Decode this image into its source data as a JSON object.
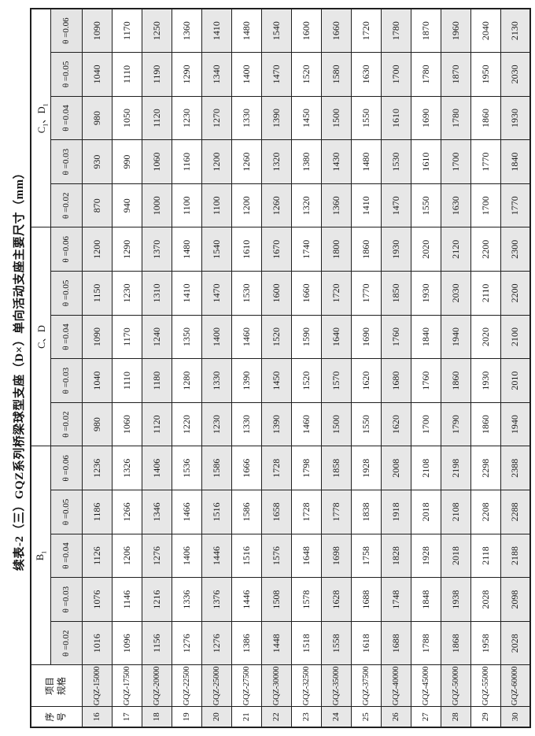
{
  "page": {
    "title": "续表-2（三）GQZ系列桥梁球型支座（D×）单向活动支座主要尺寸（mm）"
  },
  "colors": {
    "border": "#1f1f1f",
    "theta_header_bg": "#e4e4e4",
    "alt_row_bg": "#e7e7e7",
    "row_bg": "#ffffff",
    "page_bg": "#ffffff",
    "text": "#161616"
  },
  "table": {
    "corner_headers": [
      {
        "name": "serial",
        "lines": [
          "序",
          "号"
        ]
      },
      {
        "name": "spec",
        "lines": [
          "项目",
          "规格"
        ]
      }
    ],
    "groups": [
      {
        "parts": [
          {
            "t": "B"
          },
          {
            "t": "1",
            "sub": true
          }
        ],
        "thetas": [
          "θ =0.02",
          "θ =0.03",
          "θ =0.04",
          "θ =0.05",
          "θ =0.06"
        ]
      },
      {
        "parts": [
          {
            "t": "C、D"
          }
        ],
        "thetas": [
          "θ =0.02",
          "θ =0.03",
          "θ =0.04",
          "θ =0.05",
          "θ =0.06"
        ]
      },
      {
        "parts": [
          {
            "t": "C"
          },
          {
            "t": "1",
            "sub": true
          },
          {
            "t": "、D"
          },
          {
            "t": "1",
            "sub": true
          }
        ],
        "thetas": [
          "θ =0.02",
          "θ =0.03",
          "θ =0.04",
          "θ =0.05",
          "θ =0.06"
        ]
      }
    ],
    "rows": [
      {
        "no": "16",
        "spec": "GQZ-15000",
        "b1": [
          "1016",
          "1076",
          "1126",
          "1186",
          "1236"
        ],
        "cd": [
          "980",
          "1040",
          "1090",
          "1150",
          "1200"
        ],
        "c1d1": [
          "870",
          "930",
          "980",
          "1040",
          "1090"
        ]
      },
      {
        "no": "17",
        "spec": "GQZ-17500",
        "b1": [
          "1096",
          "1146",
          "1206",
          "1266",
          "1326"
        ],
        "cd": [
          "1060",
          "1110",
          "1170",
          "1230",
          "1290"
        ],
        "c1d1": [
          "940",
          "990",
          "1050",
          "1110",
          "1170"
        ]
      },
      {
        "no": "18",
        "spec": "GQZ-20000",
        "b1": [
          "1156",
          "1216",
          "1276",
          "1346",
          "1406"
        ],
        "cd": [
          "1120",
          "1180",
          "1240",
          "1310",
          "1370"
        ],
        "c1d1": [
          "1000",
          "1060",
          "1120",
          "1190",
          "1250"
        ]
      },
      {
        "no": "19",
        "spec": "GQZ-22500",
        "b1": [
          "1276",
          "1336",
          "1406",
          "1466",
          "1536"
        ],
        "cd": [
          "1220",
          "1280",
          "1350",
          "1410",
          "1480"
        ],
        "c1d1": [
          "1100",
          "1160",
          "1230",
          "1290",
          "1360"
        ]
      },
      {
        "no": "20",
        "spec": "GQZ-25000",
        "b1": [
          "1276",
          "1376",
          "1446",
          "1516",
          "1586"
        ],
        "cd": [
          "1230",
          "1330",
          "1400",
          "1470",
          "1540"
        ],
        "c1d1": [
          "1100",
          "1200",
          "1270",
          "1340",
          "1410"
        ]
      },
      {
        "no": "21",
        "spec": "GQZ-27500",
        "b1": [
          "1386",
          "1446",
          "1516",
          "1586",
          "1666"
        ],
        "cd": [
          "1330",
          "1390",
          "1460",
          "1530",
          "1610"
        ],
        "c1d1": [
          "1200",
          "1260",
          "1330",
          "1400",
          "1480"
        ]
      },
      {
        "no": "22",
        "spec": "GQZ-30000",
        "b1": [
          "1448",
          "1508",
          "1576",
          "1658",
          "1728"
        ],
        "cd": [
          "1390",
          "1450",
          "1520",
          "1600",
          "1670"
        ],
        "c1d1": [
          "1260",
          "1320",
          "1390",
          "1470",
          "1540"
        ]
      },
      {
        "no": "23",
        "spec": "GQZ-32500",
        "b1": [
          "1518",
          "1578",
          "1648",
          "1728",
          "1798"
        ],
        "cd": [
          "1460",
          "1520",
          "1590",
          "1660",
          "1740"
        ],
        "c1d1": [
          "1320",
          "1380",
          "1450",
          "1520",
          "1600"
        ]
      },
      {
        "no": "24",
        "spec": "GQZ-35000",
        "b1": [
          "1558",
          "1628",
          "1698",
          "1778",
          "1858"
        ],
        "cd": [
          "1500",
          "1570",
          "1640",
          "1720",
          "1800"
        ],
        "c1d1": [
          "1360",
          "1430",
          "1500",
          "1580",
          "1660"
        ]
      },
      {
        "no": "25",
        "spec": "GQZ-37500",
        "b1": [
          "1618",
          "1688",
          "1758",
          "1838",
          "1928"
        ],
        "cd": [
          "1550",
          "1620",
          "1690",
          "1770",
          "1860"
        ],
        "c1d1": [
          "1410",
          "1480",
          "1550",
          "1630",
          "1720"
        ]
      },
      {
        "no": "26",
        "spec": "GQZ-40000",
        "b1": [
          "1688",
          "1748",
          "1828",
          "1918",
          "2008"
        ],
        "cd": [
          "1620",
          "1680",
          "1760",
          "1850",
          "1930"
        ],
        "c1d1": [
          "1470",
          "1530",
          "1610",
          "1700",
          "1780"
        ]
      },
      {
        "no": "27",
        "spec": "GQZ-45000",
        "b1": [
          "1788",
          "1848",
          "1928",
          "2018",
          "2108"
        ],
        "cd": [
          "1700",
          "1760",
          "1840",
          "1930",
          "2020"
        ],
        "c1d1": [
          "1550",
          "1610",
          "1690",
          "1780",
          "1870"
        ]
      },
      {
        "no": "28",
        "spec": "GQZ-50000",
        "b1": [
          "1868",
          "1938",
          "2018",
          "2108",
          "2198"
        ],
        "cd": [
          "1790",
          "1860",
          "1940",
          "2030",
          "2120"
        ],
        "c1d1": [
          "1630",
          "1700",
          "1780",
          "1870",
          "1960"
        ]
      },
      {
        "no": "29",
        "spec": "GQZ-55000",
        "b1": [
          "1958",
          "2028",
          "2118",
          "2208",
          "2298"
        ],
        "cd": [
          "1860",
          "1930",
          "2020",
          "2110",
          "2200"
        ],
        "c1d1": [
          "1700",
          "1770",
          "1860",
          "1950",
          "2040"
        ]
      },
      {
        "no": "30",
        "spec": "GQZ-60000",
        "b1": [
          "2028",
          "2098",
          "2188",
          "2288",
          "2388"
        ],
        "cd": [
          "1940",
          "2010",
          "2100",
          "2200",
          "2300"
        ],
        "c1d1": [
          "1770",
          "1840",
          "1930",
          "2030",
          "2130"
        ]
      }
    ]
  }
}
